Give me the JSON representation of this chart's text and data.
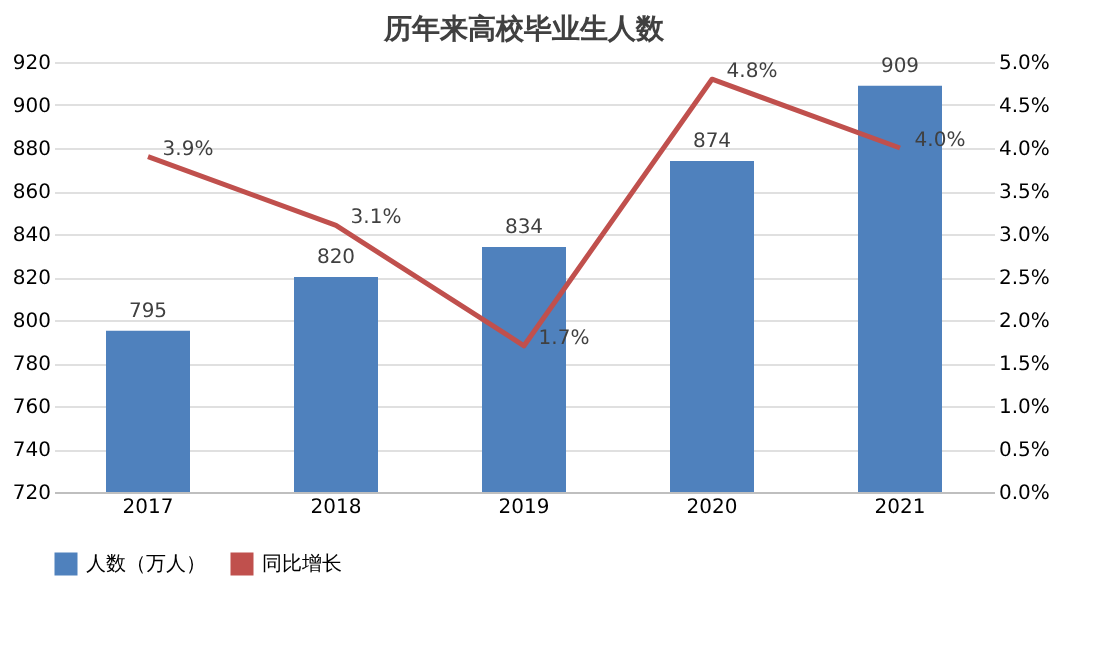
{
  "chart_data": {
    "type": "bar",
    "title": "历年来高校毕业生人数",
    "categories": [
      "2017",
      "2018",
      "2019",
      "2020",
      "2021"
    ],
    "series": [
      {
        "name": "人数（万人）",
        "color": "#4f81bd",
        "values": [
          795,
          820,
          834,
          874,
          909
        ]
      },
      {
        "name": "同比增长",
        "type": "line",
        "axis": "y2",
        "color": "#c0504d",
        "values": [
          3.9,
          3.1,
          1.7,
          4.8,
          4.0
        ],
        "value_labels": [
          "3.9%",
          "3.1%",
          "1.7%",
          "4.8%",
          "4.0%"
        ]
      }
    ],
    "ylim": [
      720,
      920
    ],
    "yticks": [
      720,
      740,
      760,
      780,
      800,
      820,
      840,
      860,
      880,
      900,
      920
    ],
    "y2lim": [
      0,
      5
    ],
    "y2ticks": [
      {
        "value": 0,
        "label": "0.0%"
      },
      {
        "value": 0.5,
        "label": "0.5%"
      },
      {
        "value": 1,
        "label": "1.0%"
      },
      {
        "value": 1.5,
        "label": "1.5%"
      },
      {
        "value": 2,
        "label": "2.0%"
      },
      {
        "value": 2.5,
        "label": "2.5%"
      },
      {
        "value": 3,
        "label": "3.0%"
      },
      {
        "value": 3.5,
        "label": "3.5%"
      },
      {
        "value": 4,
        "label": "4.0%"
      },
      {
        "value": 4.5,
        "label": "4.5%"
      },
      {
        "value": 5,
        "label": "5.0%"
      }
    ],
    "data_labels": true,
    "grid": "y",
    "legend": "bottom",
    "marker": "none",
    "line_style": "solid"
  }
}
